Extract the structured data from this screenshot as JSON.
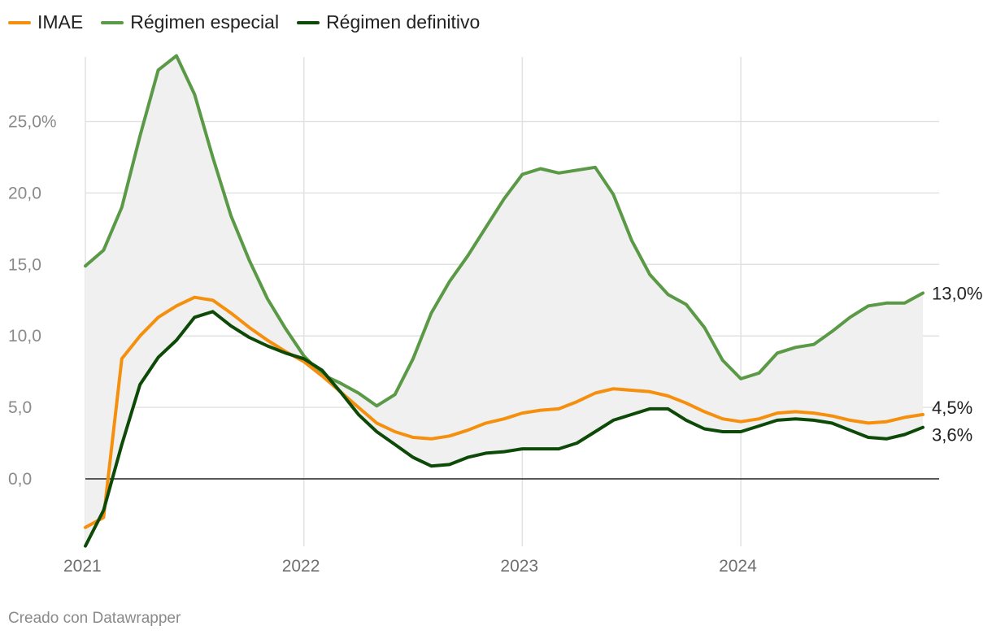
{
  "chart_data": {
    "type": "line",
    "title": "",
    "xlabel": "",
    "ylabel": "",
    "ylim": [
      -4.8,
      29.5
    ],
    "grid": true,
    "legend_position": "top-left",
    "shaded_range_between": [
      "Régimen especial",
      "Régimen definitivo"
    ],
    "y_ticks": [
      {
        "value": 0,
        "label": "0,0"
      },
      {
        "value": 5,
        "label": "5,0"
      },
      {
        "value": 10,
        "label": "10,0"
      },
      {
        "value": 15,
        "label": "15,0"
      },
      {
        "value": 20,
        "label": "20,0"
      },
      {
        "value": 25,
        "label": "25,0%"
      }
    ],
    "x_ticks": [
      {
        "value": "2021-01",
        "label": "2021"
      },
      {
        "value": "2022-01",
        "label": "2022"
      },
      {
        "value": "2023-01",
        "label": "2023"
      },
      {
        "value": "2024-01",
        "label": "2024"
      }
    ],
    "x": [
      "2021-01",
      "2021-02",
      "2021-03",
      "2021-04",
      "2021-05",
      "2021-06",
      "2021-07",
      "2021-08",
      "2021-09",
      "2021-10",
      "2021-11",
      "2021-12",
      "2022-01",
      "2022-02",
      "2022-03",
      "2022-04",
      "2022-05",
      "2022-06",
      "2022-07",
      "2022-08",
      "2022-09",
      "2022-10",
      "2022-11",
      "2022-12",
      "2023-01",
      "2023-02",
      "2023-03",
      "2023-04",
      "2023-05",
      "2023-06",
      "2023-07",
      "2023-08",
      "2023-09",
      "2023-10",
      "2023-11",
      "2023-12",
      "2024-01",
      "2024-02",
      "2024-03",
      "2024-04",
      "2024-05",
      "2024-06",
      "2024-07",
      "2024-08",
      "2024-09",
      "2024-10",
      "2024-11"
    ],
    "series": [
      {
        "name": "IMAE",
        "color": "#f5900e",
        "end_label": "4,5%",
        "values": [
          -3.4,
          -2.7,
          8.4,
          10.0,
          11.3,
          12.1,
          12.7,
          12.5,
          11.6,
          10.6,
          9.7,
          8.9,
          8.2,
          7.2,
          6.1,
          5.0,
          3.9,
          3.3,
          2.9,
          2.8,
          3.0,
          3.4,
          3.9,
          4.2,
          4.6,
          4.8,
          4.9,
          5.4,
          6.0,
          6.3,
          6.2,
          6.1,
          5.8,
          5.3,
          4.7,
          4.2,
          4.0,
          4.2,
          4.6,
          4.7,
          4.6,
          4.4,
          4.1,
          3.9,
          4.0,
          4.3,
          4.5
        ]
      },
      {
        "name": "Régimen especial",
        "color": "#5a9a46",
        "end_label": "13,0%",
        "values": [
          14.9,
          16.0,
          19.0,
          24.0,
          28.6,
          29.6,
          26.9,
          22.5,
          18.4,
          15.3,
          12.6,
          10.5,
          8.6,
          7.3,
          6.7,
          6.0,
          5.1,
          5.9,
          8.4,
          11.6,
          13.8,
          15.6,
          17.6,
          19.6,
          21.3,
          21.7,
          21.4,
          21.6,
          21.8,
          19.9,
          16.7,
          14.3,
          12.9,
          12.2,
          10.6,
          8.3,
          7.0,
          7.4,
          8.8,
          9.2,
          9.4,
          10.3,
          11.3,
          12.1,
          12.3,
          12.3,
          13.0
        ]
      },
      {
        "name": "Régimen definitivo",
        "color": "#0d4a08",
        "end_label": "3,6%",
        "values": [
          -4.7,
          -2.2,
          2.4,
          6.6,
          8.5,
          9.7,
          11.3,
          11.7,
          10.7,
          9.9,
          9.3,
          8.8,
          8.4,
          7.6,
          6.1,
          4.5,
          3.3,
          2.4,
          1.5,
          0.9,
          1.0,
          1.5,
          1.8,
          1.9,
          2.1,
          2.1,
          2.1,
          2.5,
          3.3,
          4.1,
          4.5,
          4.9,
          4.9,
          4.1,
          3.5,
          3.3,
          3.3,
          3.7,
          4.1,
          4.2,
          4.1,
          3.9,
          3.4,
          2.9,
          2.8,
          3.1,
          3.6
        ]
      }
    ]
  },
  "footer": {
    "credit": "Creado con Datawrapper"
  }
}
